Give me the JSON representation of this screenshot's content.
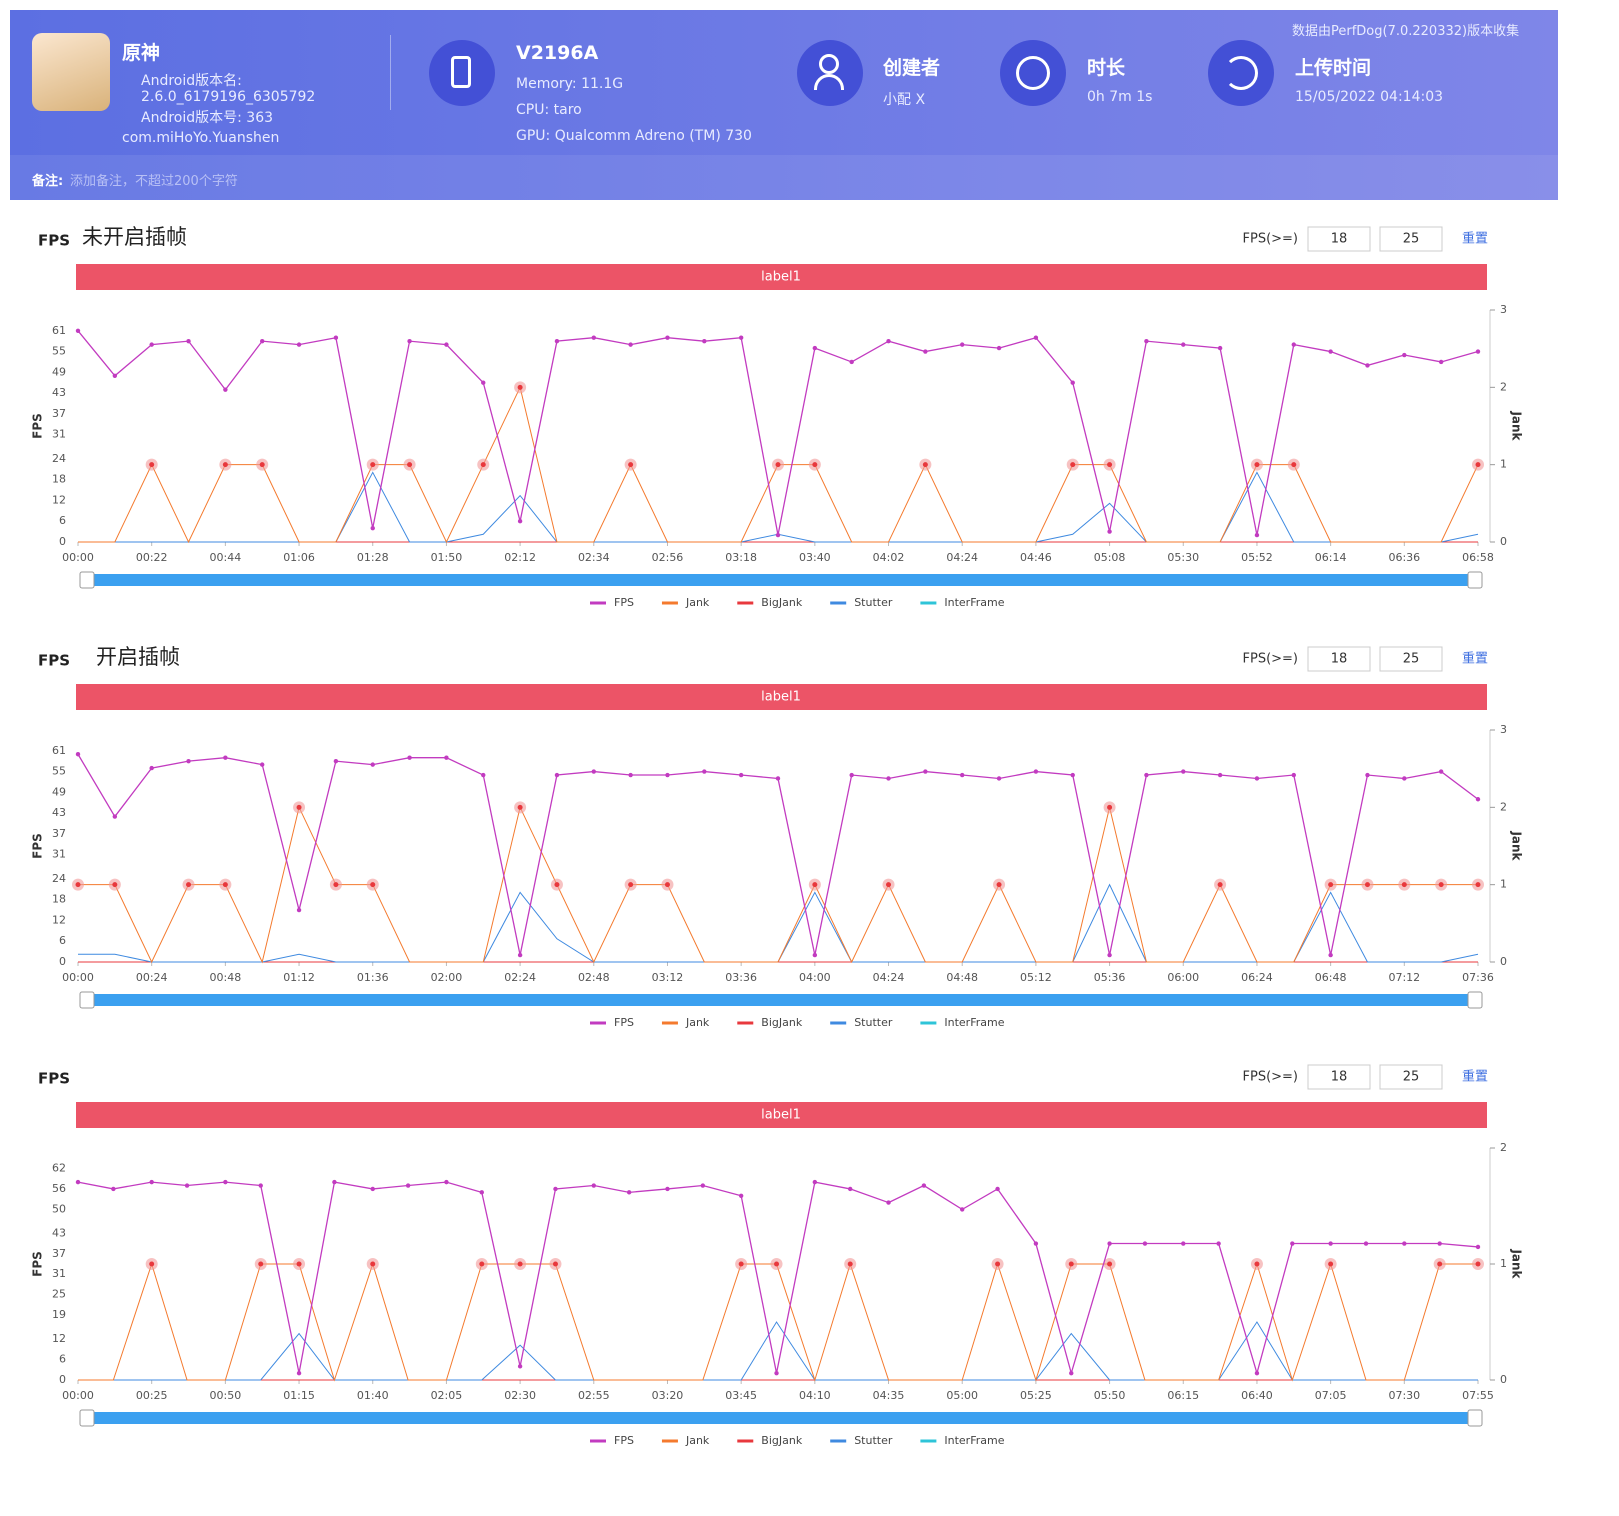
{
  "header": {
    "app_name": "原神",
    "version_name_label": "Android版本名:",
    "version_name": "2.6.0_6179196_6305792",
    "version_code": "Android版本号: 363",
    "package": "com.miHoYo.Yuanshen",
    "device": "V2196A",
    "memory": "Memory: 11.1G",
    "cpu": "CPU: taro",
    "gpu": "GPU: Qualcomm Adreno (TM) 730",
    "creator_label": "创建者",
    "creator": "小配 X",
    "duration_label": "时长",
    "duration": "0h 7m 1s",
    "upload_label": "上传时间",
    "upload_time": "15/05/2022 04:14:03",
    "source": "数据由PerfDog(7.0.220332)版本收集",
    "note_label": "备注:",
    "note_placeholder": "添加备注，不超过200个字符"
  },
  "chart_data": [
    {
      "type": "line",
      "metric": "FPS",
      "title": "未开启插帧",
      "threshold_label": "FPS(>=)",
      "thresholds": [
        18,
        25
      ],
      "reset": "重置",
      "band_label": "label1",
      "y_label": "FPS",
      "y2_label": "Jank",
      "x": [
        "00:00",
        "00:11",
        "00:22",
        "00:33",
        "00:44",
        "00:55",
        "01:06",
        "01:17",
        "01:28",
        "01:39",
        "01:50",
        "02:01",
        "02:12",
        "02:23",
        "02:34",
        "02:45",
        "02:56",
        "03:07",
        "03:18",
        "03:29",
        "03:40",
        "03:51",
        "04:02",
        "04:13",
        "04:24",
        "04:35",
        "04:46",
        "04:57",
        "05:08",
        "05:19",
        "05:30",
        "05:41",
        "05:52",
        "06:03",
        "06:14",
        "06:25",
        "06:36",
        "06:47",
        "06:58"
      ],
      "xlim": [
        "00:00",
        "06:58"
      ],
      "xticks": [
        "00:00",
        "00:22",
        "00:44",
        "01:06",
        "01:28",
        "01:50",
        "02:12",
        "02:34",
        "02:56",
        "03:18",
        "03:40",
        "04:02",
        "04:24",
        "04:46",
        "05:08",
        "05:30",
        "05:52",
        "06:14",
        "06:36",
        "06:58"
      ],
      "ylim": [
        0,
        67
      ],
      "yticks": [
        0,
        6,
        12,
        18,
        24,
        31,
        37,
        43,
        49,
        55,
        61
      ],
      "y2lim": [
        0,
        3
      ],
      "y2ticks": [
        0,
        1,
        2,
        3
      ],
      "series": [
        {
          "name": "FPS",
          "color": "#c23bc0",
          "values": [
            61,
            48,
            57,
            58,
            44,
            58,
            57,
            59,
            4,
            58,
            57,
            46,
            6,
            58,
            59,
            57,
            59,
            58,
            59,
            2,
            56,
            52,
            58,
            55,
            57,
            56,
            59,
            46,
            3,
            58,
            57,
            56,
            2,
            57,
            55,
            51,
            54,
            52,
            55
          ]
        },
        {
          "name": "Jank",
          "color": "#f47a2e",
          "axis": "y2",
          "values": [
            0,
            0,
            1,
            0,
            1,
            1,
            0,
            0,
            1,
            1,
            0,
            1,
            2,
            0,
            0,
            1,
            0,
            0,
            0,
            1,
            1,
            0,
            0,
            1,
            0,
            0,
            0,
            1,
            1,
            0,
            0,
            0,
            1,
            1,
            0,
            0,
            0,
            0,
            1
          ]
        },
        {
          "name": "BigJank",
          "color": "#e8383d",
          "axis": "y2",
          "values": [
            0,
            0,
            0,
            0,
            0,
            0,
            0,
            0,
            0,
            0,
            0,
            0,
            0,
            0,
            0,
            0,
            0,
            0,
            0,
            0,
            0,
            0,
            0,
            0,
            0,
            0,
            0,
            0,
            0,
            0,
            0,
            0,
            0,
            0,
            0,
            0,
            0,
            0,
            0
          ]
        },
        {
          "name": "Stutter",
          "color": "#3f8ae0",
          "axis": "y2",
          "values": [
            0,
            0,
            0,
            0,
            0,
            0,
            0,
            0,
            0.9,
            0,
            0,
            0.1,
            0.6,
            0,
            0,
            0,
            0,
            0,
            0,
            0.1,
            0,
            0,
            0,
            0,
            0,
            0,
            0,
            0.1,
            0.5,
            0,
            0,
            0,
            0.9,
            0,
            0,
            0,
            0,
            0,
            0.1
          ]
        },
        {
          "name": "InterFrame",
          "color": "#2ec4d8",
          "axis": "y2",
          "values": [
            0,
            0,
            0,
            0,
            0,
            0,
            0,
            0,
            0,
            0,
            0,
            0,
            0,
            0,
            0,
            0,
            0,
            0,
            0,
            0,
            0,
            0,
            0,
            0,
            0,
            0,
            0,
            0,
            0,
            0,
            0,
            0,
            0,
            0,
            0,
            0,
            0,
            0,
            0
          ]
        }
      ]
    },
    {
      "type": "line",
      "metric": "FPS",
      "title": "开启插帧",
      "threshold_label": "FPS(>=)",
      "thresholds": [
        18,
        25
      ],
      "reset": "重置",
      "band_label": "label1",
      "y_label": "FPS",
      "y2_label": "Jank",
      "x": [
        "00:00",
        "00:12",
        "00:24",
        "00:36",
        "00:48",
        "01:00",
        "01:12",
        "01:24",
        "01:36",
        "01:48",
        "02:00",
        "02:12",
        "02:24",
        "02:36",
        "02:48",
        "03:00",
        "03:12",
        "03:24",
        "03:36",
        "03:48",
        "04:00",
        "04:12",
        "04:24",
        "04:36",
        "04:48",
        "05:00",
        "05:12",
        "05:24",
        "05:36",
        "05:48",
        "06:00",
        "06:12",
        "06:24",
        "06:36",
        "06:48",
        "07:00",
        "07:12",
        "07:24",
        "07:36"
      ],
      "xlim": [
        "00:00",
        "07:36"
      ],
      "xticks": [
        "00:00",
        "00:24",
        "00:48",
        "01:12",
        "01:36",
        "02:00",
        "02:24",
        "02:48",
        "03:12",
        "03:36",
        "04:00",
        "04:24",
        "04:48",
        "05:12",
        "05:36",
        "06:00",
        "06:24",
        "06:48",
        "07:12",
        "07:36"
      ],
      "ylim": [
        0,
        67
      ],
      "yticks": [
        0,
        6,
        12,
        18,
        24,
        31,
        37,
        43,
        49,
        55,
        61
      ],
      "y2lim": [
        0,
        3
      ],
      "y2ticks": [
        0,
        1,
        2,
        3
      ],
      "series": [
        {
          "name": "FPS",
          "color": "#c23bc0",
          "values": [
            60,
            42,
            56,
            58,
            59,
            57,
            15,
            58,
            57,
            59,
            59,
            54,
            2,
            54,
            55,
            54,
            54,
            55,
            54,
            53,
            2,
            54,
            53,
            55,
            54,
            53,
            55,
            54,
            2,
            54,
            55,
            54,
            53,
            54,
            2,
            54,
            53,
            55,
            47
          ]
        },
        {
          "name": "Jank",
          "color": "#f47a2e",
          "axis": "y2",
          "values": [
            1,
            1,
            0,
            1,
            1,
            0,
            2,
            1,
            1,
            0,
            0,
            0,
            2,
            1,
            0,
            1,
            1,
            0,
            0,
            0,
            1,
            0,
            1,
            0,
            0,
            1,
            0,
            0,
            2,
            0,
            0,
            1,
            0,
            0,
            1,
            1,
            1,
            1,
            1
          ]
        },
        {
          "name": "BigJank",
          "color": "#e8383d",
          "axis": "y2",
          "values": [
            0,
            0,
            0,
            0,
            0,
            0,
            0,
            0,
            0,
            0,
            0,
            0,
            0,
            0,
            0,
            0,
            0,
            0,
            0,
            0,
            0,
            0,
            0,
            0,
            0,
            0,
            0,
            0,
            0,
            0,
            0,
            0,
            0,
            0,
            0,
            0,
            0,
            0,
            0
          ]
        },
        {
          "name": "Stutter",
          "color": "#3f8ae0",
          "axis": "y2",
          "values": [
            0.1,
            0.1,
            0,
            0,
            0,
            0,
            0.1,
            0,
            0,
            0,
            0,
            0,
            0.9,
            0.3,
            0,
            0,
            0,
            0,
            0,
            0,
            0.9,
            0,
            0,
            0,
            0,
            0,
            0,
            0,
            1,
            0,
            0,
            0,
            0,
            0,
            0.9,
            0,
            0,
            0,
            0.1
          ]
        },
        {
          "name": "InterFrame",
          "color": "#2ec4d8",
          "axis": "y2",
          "values": [
            0,
            0,
            0,
            0,
            0,
            0,
            0,
            0,
            0,
            0,
            0,
            0,
            0,
            0,
            0,
            0,
            0,
            0,
            0,
            0,
            0,
            0,
            0,
            0,
            0,
            0,
            0,
            0,
            0,
            0,
            0,
            0,
            0,
            0,
            0,
            0,
            0,
            0,
            0
          ]
        }
      ]
    },
    {
      "type": "line",
      "metric": "FPS",
      "threshold_label": "FPS(>=)",
      "thresholds": [
        18,
        25
      ],
      "reset": "重置",
      "band_label": "label1",
      "y_label": "FPS",
      "y2_label": "Jank",
      "x": [
        "00:00",
        "00:12",
        "00:25",
        "00:37",
        "00:50",
        "01:02",
        "01:15",
        "01:27",
        "01:40",
        "01:52",
        "02:05",
        "02:17",
        "02:30",
        "02:42",
        "02:55",
        "03:07",
        "03:20",
        "03:32",
        "03:45",
        "03:57",
        "04:10",
        "04:22",
        "04:35",
        "04:47",
        "05:00",
        "05:12",
        "05:25",
        "05:37",
        "05:50",
        "06:02",
        "06:15",
        "06:27",
        "06:40",
        "06:52",
        "07:05",
        "07:17",
        "07:30",
        "07:42",
        "07:55"
      ],
      "xlim": [
        "00:00",
        "07:55"
      ],
      "xticks": [
        "00:00",
        "00:25",
        "00:50",
        "01:15",
        "01:40",
        "02:05",
        "02:30",
        "02:55",
        "03:20",
        "03:45",
        "04:10",
        "04:35",
        "05:00",
        "05:25",
        "05:50",
        "06:15",
        "06:40",
        "07:05",
        "07:30",
        "07:55"
      ],
      "ylim": [
        0,
        68
      ],
      "yticks": [
        0,
        6,
        12,
        19,
        25,
        31,
        37,
        43,
        50,
        56,
        62
      ],
      "y2lim": [
        0,
        2
      ],
      "y2ticks": [
        0,
        1,
        2
      ],
      "series": [
        {
          "name": "FPS",
          "color": "#c23bc0",
          "values": [
            58,
            56,
            58,
            57,
            58,
            57,
            2,
            58,
            56,
            57,
            58,
            55,
            4,
            56,
            57,
            55,
            56,
            57,
            54,
            2,
            58,
            56,
            52,
            57,
            50,
            56,
            40,
            2,
            40,
            40,
            40,
            40,
            2,
            40,
            40,
            40,
            40,
            40,
            39
          ]
        },
        {
          "name": "Jank",
          "color": "#f47a2e",
          "axis": "y2",
          "values": [
            0,
            0,
            1,
            0,
            0,
            1,
            1,
            0,
            1,
            0,
            0,
            1,
            1,
            1,
            0,
            0,
            0,
            0,
            1,
            1,
            0,
            1,
            0,
            0,
            0,
            1,
            0,
            1,
            1,
            0,
            0,
            0,
            1,
            0,
            1,
            0,
            0,
            1,
            1
          ]
        },
        {
          "name": "BigJank",
          "color": "#e8383d",
          "axis": "y2",
          "values": [
            0,
            0,
            0,
            0,
            0,
            0,
            0,
            0,
            0,
            0,
            0,
            0,
            0,
            0,
            0,
            0,
            0,
            0,
            0,
            0,
            0,
            0,
            0,
            0,
            0,
            0,
            0,
            0,
            0,
            0,
            0,
            0,
            0,
            0,
            0,
            0,
            0,
            0,
            0
          ]
        },
        {
          "name": "Stutter",
          "color": "#3f8ae0",
          "axis": "y2",
          "values": [
            0,
            0,
            0,
            0,
            0,
            0,
            0.4,
            0,
            0,
            0,
            0,
            0,
            0.3,
            0,
            0,
            0,
            0,
            0,
            0,
            0.5,
            0,
            0,
            0,
            0,
            0,
            0,
            0,
            0.4,
            0,
            0,
            0,
            0,
            0.5,
            0,
            0,
            0,
            0,
            0,
            0
          ]
        },
        {
          "name": "InterFrame",
          "color": "#2ec4d8",
          "axis": "y2",
          "values": [
            0,
            0,
            0,
            0,
            0,
            0,
            0,
            0,
            0,
            0,
            0,
            0,
            0,
            0,
            0,
            0,
            0,
            0,
            0,
            0,
            0,
            0,
            0,
            0,
            0,
            0,
            0,
            0,
            0,
            0,
            0,
            0,
            0,
            0,
            0,
            0,
            0,
            0,
            0
          ]
        }
      ]
    }
  ]
}
